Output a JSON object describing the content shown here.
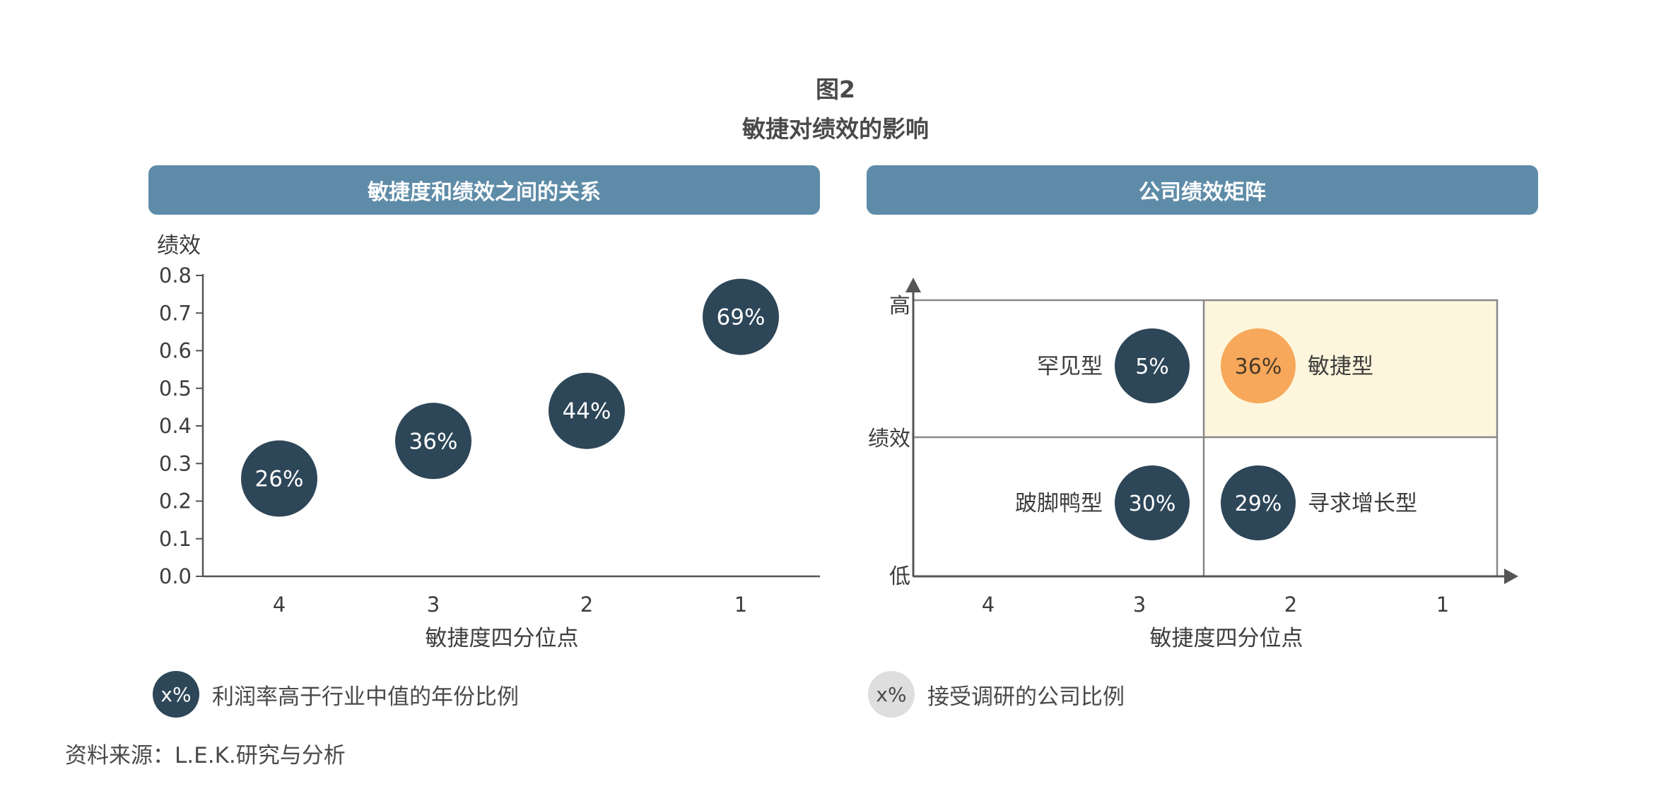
{
  "figure": {
    "number": "图2",
    "title": "敏捷对绩效的影响"
  },
  "left_panel": {
    "header": "敏捷度和绩效之间的关系",
    "legend": {
      "marker": "x%",
      "label": "利润率高于行业中值的年份比例"
    }
  },
  "right_panel": {
    "header": "公司绩效矩阵",
    "legend": {
      "marker": "x%",
      "label": "接受调研的公司比例"
    }
  },
  "source": "资料来源：L.E.K.研究与分析",
  "colors": {
    "header_bg": "#5e8ca8",
    "bubble_dark": "#2d4658",
    "bubble_highlight": "#f7a85a",
    "highlight_cell": "#fdf6dc",
    "legend_light": "#dedede",
    "axis": "#555555"
  },
  "chart_data": [
    {
      "type": "scatter",
      "title": "敏捷度和绩效之间的关系",
      "xlabel": "敏捷度四分位点",
      "ylabel": "绩效",
      "x_ticks": [
        "4",
        "3",
        "2",
        "1"
      ],
      "y_ticks": [
        "0.0",
        "0.1",
        "0.2",
        "0.3",
        "0.4",
        "0.5",
        "0.6",
        "0.7",
        "0.8"
      ],
      "ylim": [
        0,
        0.8
      ],
      "grid": false,
      "points": [
        {
          "x": "4",
          "y": 0.26,
          "label": "26%"
        },
        {
          "x": "3",
          "y": 0.36,
          "label": "36%"
        },
        {
          "x": "2",
          "y": 0.44,
          "label": "44%"
        },
        {
          "x": "1",
          "y": 0.69,
          "label": "69%"
        }
      ]
    },
    {
      "type": "scatter",
      "title": "公司绩效矩阵",
      "xlabel": "敏捷度四分位点",
      "ylabel": "绩效",
      "x_ticks": [
        "4",
        "3",
        "2",
        "1"
      ],
      "y_ticks": [
        "低",
        "绩效",
        "高"
      ],
      "grid": true,
      "quadrants": [
        {
          "name": "罕见型",
          "value": 5,
          "label": "5%",
          "performance": "高",
          "agility": "低",
          "highlight": false
        },
        {
          "name": "敏捷型",
          "value": 36,
          "label": "36%",
          "performance": "高",
          "agility": "高",
          "highlight": true
        },
        {
          "name": "跛脚鸭型",
          "value": 30,
          "label": "30%",
          "performance": "低",
          "agility": "低",
          "highlight": false
        },
        {
          "name": "寻求增长型",
          "value": 29,
          "label": "29%",
          "performance": "低",
          "agility": "高",
          "highlight": false
        }
      ]
    }
  ]
}
